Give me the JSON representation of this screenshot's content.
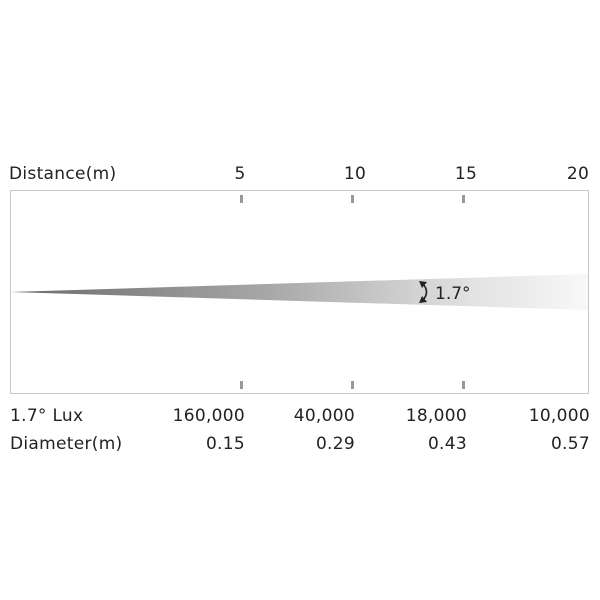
{
  "header": {
    "distance_label": "Distance(m)",
    "ticks": [
      "5",
      "10",
      "15",
      "20"
    ]
  },
  "beam": {
    "angle_label": "1.7°"
  },
  "rows": {
    "lux": {
      "label": "1.7° Lux",
      "values": [
        "160,000",
        "40,000",
        "18,000",
        "10,000"
      ]
    },
    "diameter": {
      "label": "Diameter(m)",
      "values": [
        "0.15",
        "0.29",
        "0.43",
        "0.57"
      ]
    }
  },
  "colors": {
    "frame": "#c8c8c8",
    "tick": "#999999",
    "beam_dark": "#6e6e6e",
    "beam_light": "#f4f4f4",
    "text": "#222222"
  }
}
